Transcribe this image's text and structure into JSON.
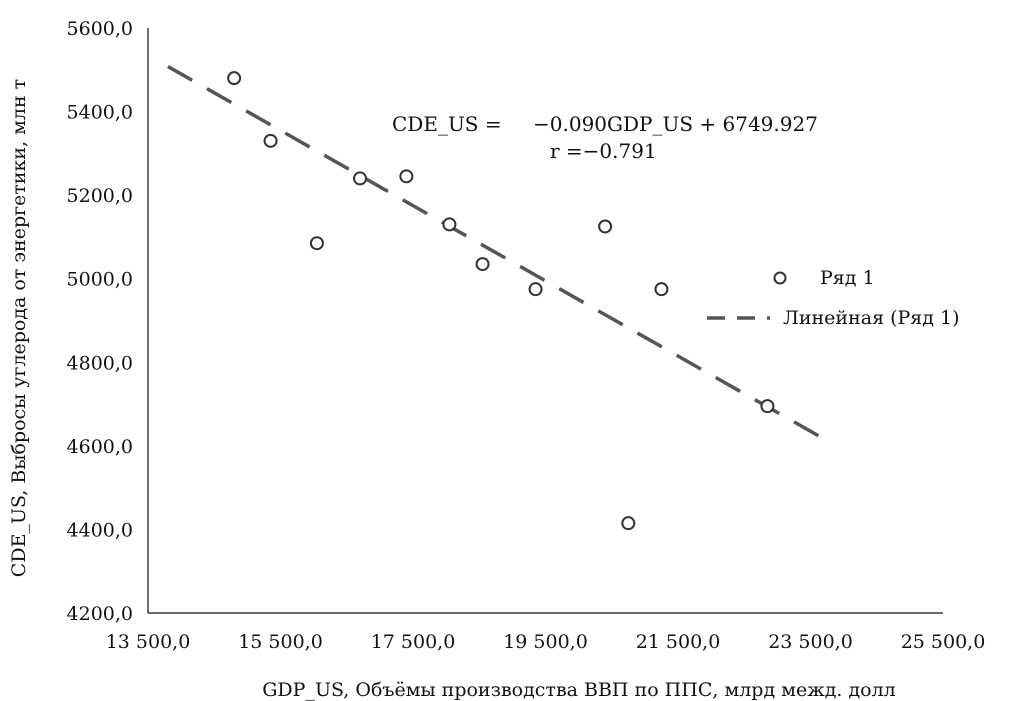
{
  "chart_data": {
    "type": "scatter",
    "xlabel": "GDP_US,  Объёмы производства ВВП по ППС, млрд межд. долл",
    "ylabel": "CDE_US,  Выбросы углерода от энергетики, млн т",
    "xlim": [
      13500,
      25500
    ],
    "ylim": [
      4200,
      5600
    ],
    "x_ticks": [
      13500,
      15500,
      17500,
      19500,
      21500,
      23500,
      25500
    ],
    "x_tick_labels": [
      "13 500,0",
      "15 500,0",
      "17 500,0",
      "19 500,0",
      "21 500,0",
      "23 500,0",
      "25 500,0"
    ],
    "y_ticks": [
      4200,
      4400,
      4600,
      4800,
      5000,
      5200,
      5400,
      5600
    ],
    "y_tick_labels": [
      "4200,0",
      "4400,0",
      "4600,0",
      "4800,0",
      "5000,0",
      "5200,0",
      "5400,0",
      "5600,0"
    ],
    "series": [
      {
        "name": "Ряд 1",
        "points": [
          {
            "x": 14800,
            "y": 5480
          },
          {
            "x": 15350,
            "y": 5330
          },
          {
            "x": 16050,
            "y": 5085
          },
          {
            "x": 16700,
            "y": 5240
          },
          {
            "x": 17400,
            "y": 5245
          },
          {
            "x": 18050,
            "y": 5130
          },
          {
            "x": 18550,
            "y": 5035
          },
          {
            "x": 19350,
            "y": 4975
          },
          {
            "x": 20400,
            "y": 5125
          },
          {
            "x": 20750,
            "y": 4415
          },
          {
            "x": 21250,
            "y": 4975
          },
          {
            "x": 22850,
            "y": 4695
          }
        ],
        "color": "#333333"
      }
    ],
    "trendline": {
      "name": "Линейная (Ряд 1)",
      "slope": -0.09,
      "intercept": 6749.927,
      "x_range": [
        13800,
        23750
      ],
      "color": "#555555"
    },
    "annotations": {
      "equation_lhs": "CDE_US =",
      "equation_rhs": "−0.090GDP_US + 6749.927",
      "r_text": "r =−0.791"
    },
    "legend_position": "right",
    "grid": false
  }
}
